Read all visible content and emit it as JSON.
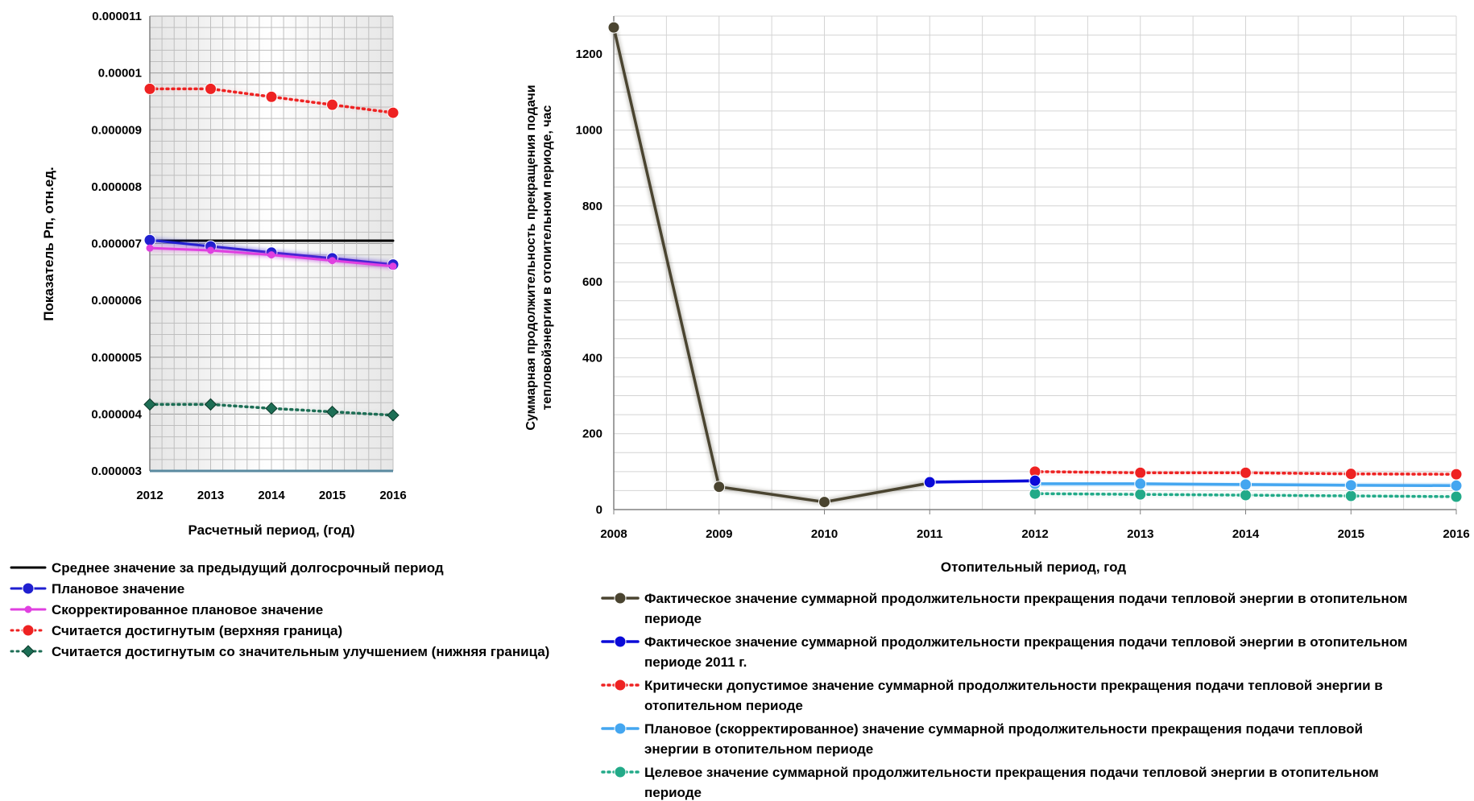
{
  "chart_data": [
    {
      "type": "line",
      "xlabel": "Расчетный период, (год)",
      "ylabel": "Показатель Pп,  отн.ед.",
      "ylim": [
        3e-06,
        1.1e-05
      ],
      "y_ticks": [
        "0.000003",
        "0.000004",
        "0.000005",
        "0.000006",
        "0.000007",
        "0.000008",
        "0.000009",
        "0.00001",
        "0.000011"
      ],
      "x": [
        "2012",
        "2013",
        "2014",
        "2015",
        "2016"
      ],
      "grid": true,
      "legend_position": "bottom",
      "series": [
        {
          "name": "Среднее значение за предыдущий долгосрочный период",
          "color": "#000000",
          "style": "solid",
          "marker": "none",
          "values": [
            7.05e-06,
            7.05e-06,
            7.05e-06,
            7.05e-06,
            7.05e-06
          ]
        },
        {
          "name": "Плановое значение",
          "color": "#1f1fd0",
          "style": "solid",
          "marker": "circle",
          "values": [
            7.06e-06,
            6.95e-06,
            6.84e-06,
            6.74e-06,
            6.63e-06
          ]
        },
        {
          "name": "Скорректированное плановое значение",
          "color": "#e040e0",
          "style": "solid",
          "marker": "circle-small",
          "values": [
            6.92e-06,
            6.88e-06,
            6.8e-06,
            6.7e-06,
            6.6e-06
          ]
        },
        {
          "name": "Считается достигнутым (верхняя граница)",
          "color": "#ee2222",
          "style": "dotted",
          "marker": "circle",
          "values": [
            9.72e-06,
            9.72e-06,
            9.58e-06,
            9.44e-06,
            9.3e-06
          ]
        },
        {
          "name": "Считается достигнутым со значительным улучшением (нижняя граница)",
          "color": "#1d6e55",
          "style": "dotted",
          "marker": "diamond",
          "values": [
            4.17e-06,
            4.17e-06,
            4.1e-06,
            4.04e-06,
            3.98e-06
          ]
        }
      ]
    },
    {
      "type": "line",
      "xlabel": "Отопительный период, год",
      "ylabel_lines": [
        "Суммарная продолжительность прекращения подачи",
        "тепловойэнергии в отопительном периоде, час"
      ],
      "ylim": [
        0,
        1300
      ],
      "y_ticks": [
        "0",
        "200",
        "400",
        "600",
        "800",
        "1000",
        "1200"
      ],
      "x": [
        "2008",
        "2009",
        "2010",
        "2011",
        "2012",
        "2013",
        "2014",
        "2015",
        "2016"
      ],
      "grid": true,
      "legend_position": "bottom",
      "series": [
        {
          "name_lines": [
            "Фактическое значение суммарной продолжительности прекращения подачи тепловой энергии в отопительном",
            "периоде"
          ],
          "color": "#4a4430",
          "style": "solid",
          "marker": "circle",
          "values": [
            1270,
            60,
            20,
            70,
            null,
            null,
            null,
            null,
            null
          ]
        },
        {
          "name_lines": [
            "Фактическое значение суммарной продолжительности прекращения подачи тепловой энергии в отопительном",
            "периоде 2011 г."
          ],
          "color": "#0a0ad8",
          "style": "solid",
          "marker": "circle",
          "values": [
            null,
            null,
            null,
            72,
            76,
            null,
            null,
            null,
            null
          ]
        },
        {
          "name_lines": [
            "Критически допустимое значение суммарной продолжительности прекращения подачи тепловой энергии в",
            "отопительном периоде"
          ],
          "color": "#ee2222",
          "style": "dotted",
          "marker": "circle",
          "values": [
            null,
            null,
            null,
            null,
            100,
            97,
            97,
            94,
            93
          ]
        },
        {
          "name_lines": [
            "Плановое (скорректированное)  значение суммарной продолжительности прекращения подачи тепловой",
            "энергии в отопительном периоде"
          ],
          "color": "#44a6f0",
          "style": "solid",
          "marker": "circle",
          "values": [
            null,
            null,
            null,
            null,
            68,
            68,
            66,
            64,
            63
          ]
        },
        {
          "name_lines": [
            "Целевое значение суммарной продолжительности прекращения подачи тепловой энергии в отопительном",
            "периоде"
          ],
          "color": "#22aa88",
          "style": "dotted",
          "marker": "circle",
          "values": [
            null,
            null,
            null,
            null,
            42,
            40,
            38,
            36,
            34
          ]
        }
      ]
    }
  ]
}
